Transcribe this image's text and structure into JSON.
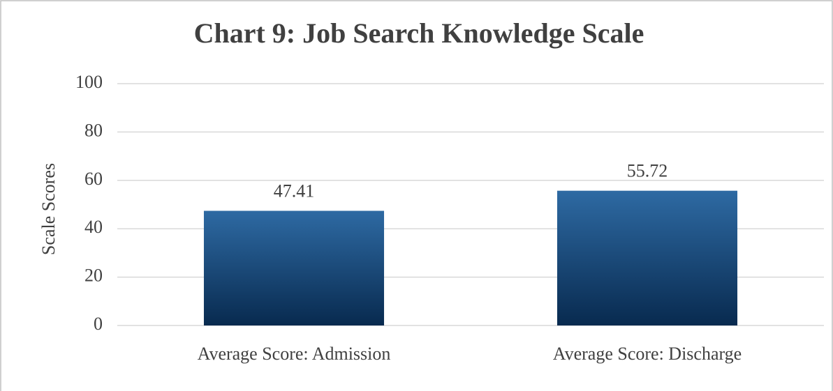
{
  "chart_data": {
    "type": "bar",
    "title": "Chart 9: Job Search Knowledge Scale",
    "ylabel": "Scale Scores",
    "categories": [
      "Average Score: Admission",
      "Average Score: Discharge"
    ],
    "values": [
      47.41,
      55.72
    ],
    "color": "#2e6aa3",
    "ylim": [
      0,
      100
    ],
    "yticks": [
      0,
      20,
      40,
      60,
      80,
      100
    ],
    "grid": true
  }
}
